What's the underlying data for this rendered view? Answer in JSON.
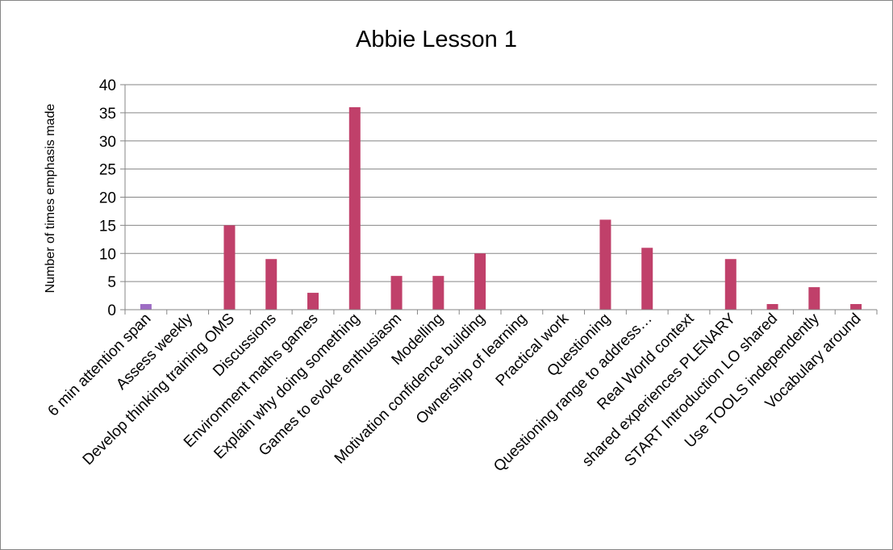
{
  "chart_data": {
    "type": "bar",
    "title": "Abbie Lesson 1",
    "ylabel": "Number of times emphasis made",
    "xlabel": "",
    "ylim": [
      0,
      40
    ],
    "yticks": [
      0,
      5,
      10,
      15,
      20,
      25,
      30,
      35,
      40
    ],
    "grid": true,
    "categories": [
      "6 min attention span",
      "Assess weekly",
      "Develop thinking training  OMS",
      "Discussions",
      "Environment maths games",
      "Explain why doing something",
      "Games to evoke enthusiasm",
      "Modelling",
      "Motivation  confidence building",
      "Ownership of learning",
      "Practical work",
      "Questioning",
      "Questioning range to address…",
      "Real World context",
      "shared experiences  PLENARY",
      "START Introduction LO shared",
      "Use TOOLS independently",
      "Vocabulary around"
    ],
    "values": [
      1,
      0,
      15,
      9,
      3,
      36,
      6,
      6,
      10,
      0,
      0,
      16,
      11,
      0,
      9,
      1,
      4,
      1
    ],
    "colors": {
      "bar": "#c0406a",
      "bar_first": "#9e6cc4",
      "gridline": "#868686",
      "axis": "#868686"
    }
  }
}
